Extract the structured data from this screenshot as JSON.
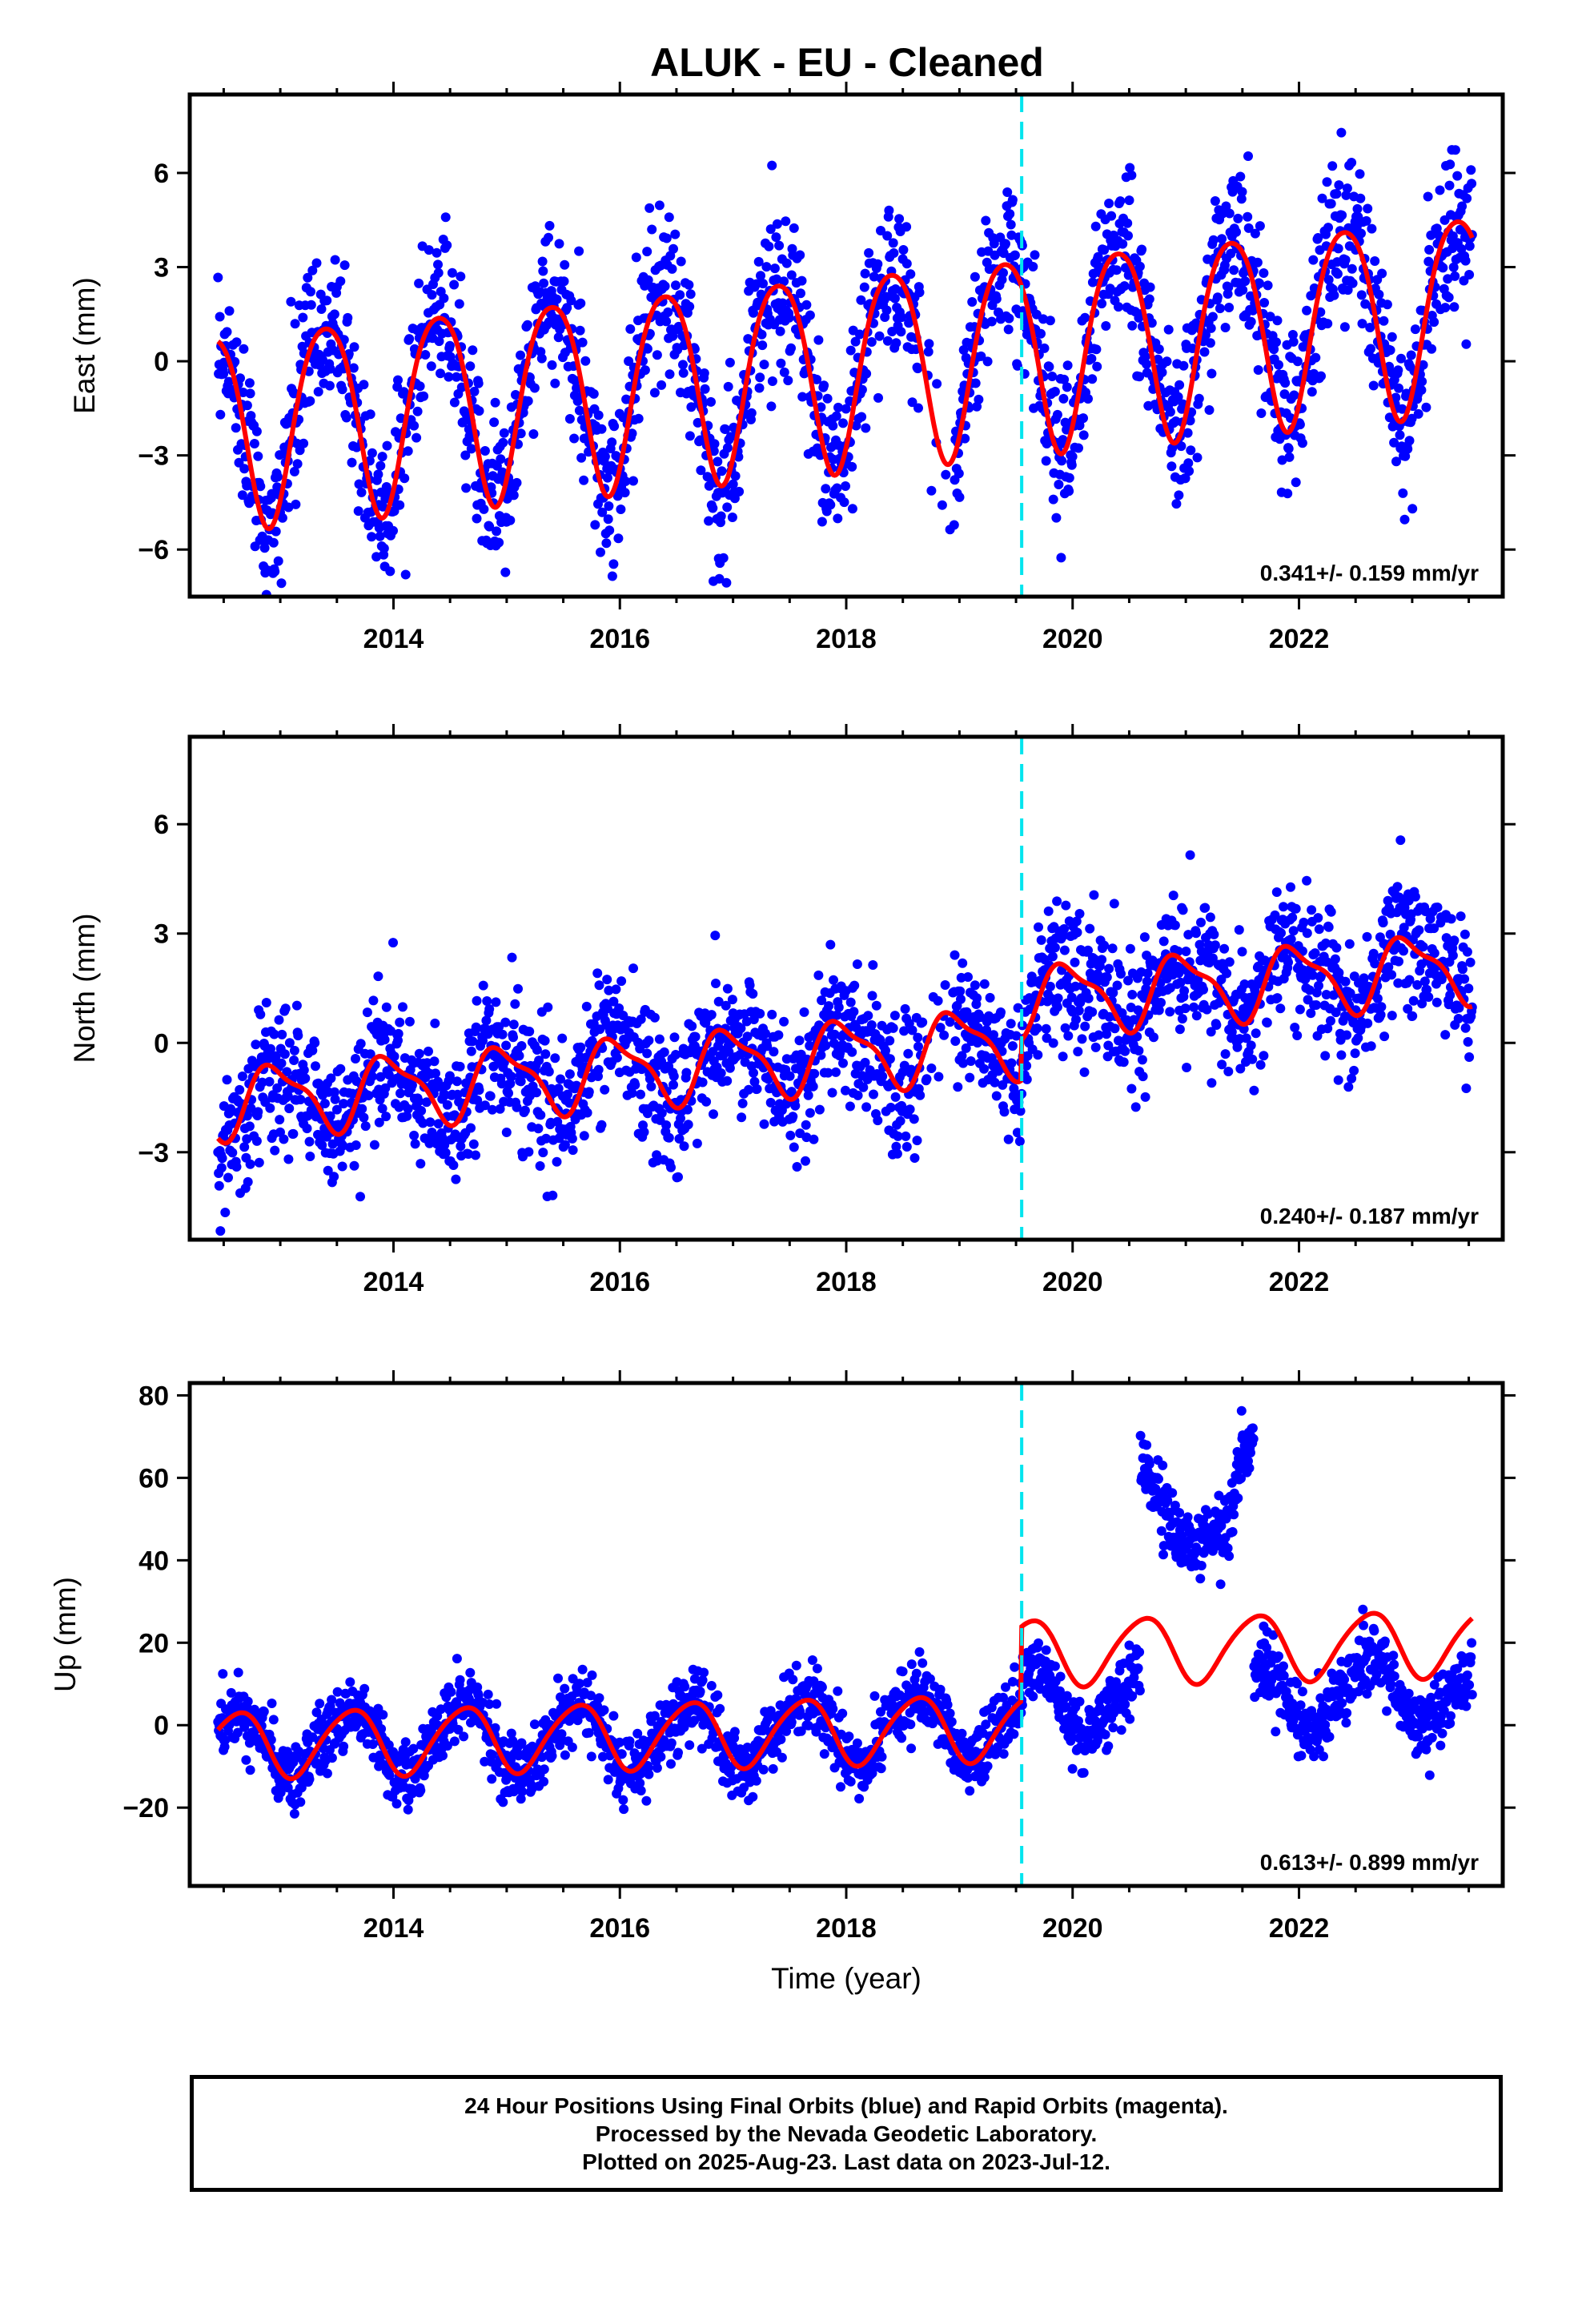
{
  "title": "ALUK  - EU - Cleaned",
  "footer": {
    "line1": "24 Hour Positions Using Final Orbits (blue) and Rapid Orbits (magenta).",
    "line2": "Processed by the Nevada Geodetic Laboratory.",
    "line3": "Plotted on 2025-Aug-23. Last data on 2023-Jul-12."
  },
  "colors": {
    "points": "#0000ff",
    "model": "#ff0000",
    "break_line": "#00e5ee"
  },
  "chart_data": [
    {
      "type": "scatter",
      "panel": "east",
      "ylabel": "East (mm)",
      "xlabel": "",
      "xlim": [
        2012.2,
        2023.8
      ],
      "ylim": [
        -7.5,
        8.5
      ],
      "xticks": [
        2014,
        2016,
        2018,
        2020,
        2022
      ],
      "xtick_labels": [
        "2014",
        "2016",
        "2018",
        "2020",
        "2022"
      ],
      "yticks": [
        -6,
        -3,
        0,
        3,
        6
      ],
      "ytick_labels": [
        "−6",
        "−3",
        "0",
        "3",
        "6"
      ],
      "rate": "0.341+/- 0.159 mm/yr",
      "equipment_change": 2019.55,
      "data_start": 2012.45,
      "data_end": 2023.53,
      "model": {
        "offset": -0.1,
        "trend": 0.341,
        "t0": 2018.0,
        "annual_amp": 3.1,
        "annual_peak": 0.4,
        "semiannual_amp": 0.4,
        "semiannual_peak": 0.15,
        "scatter_sd": 1.25
      },
      "series": [
        {
          "name": "Final Orbits",
          "style": "points",
          "color": "#0000ff"
        },
        {
          "name": "Model",
          "style": "line",
          "color": "#ff0000"
        }
      ]
    },
    {
      "type": "scatter",
      "panel": "north",
      "ylabel": "North (mm)",
      "xlabel": "",
      "xlim": [
        2012.2,
        2023.8
      ],
      "ylim": [
        -5.4,
        8.4
      ],
      "xticks": [
        2014,
        2016,
        2018,
        2020,
        2022
      ],
      "xtick_labels": [
        "2014",
        "2016",
        "2018",
        "2020",
        "2022"
      ],
      "yticks": [
        -3,
        0,
        3,
        6
      ],
      "ytick_labels": [
        "−3",
        "0",
        "3",
        "6"
      ],
      "rate": "0.240+/- 0.187 mm/yr",
      "equipment_change": 2019.55,
      "data_start": 2012.45,
      "data_end": 2023.53,
      "model": {
        "offset": -0.3,
        "trend": 0.24,
        "t0": 2018.0,
        "annual_amp": 0.9,
        "annual_peak": 0.97,
        "semiannual_amp": 0.3,
        "semiannual_peak": 0.3,
        "scatter_sd": 0.95,
        "step": 1.1
      },
      "series": [
        {
          "name": "Final Orbits",
          "style": "points",
          "color": "#0000ff"
        },
        {
          "name": "Model",
          "style": "line",
          "color": "#ff0000"
        }
      ]
    },
    {
      "type": "scatter",
      "panel": "up",
      "ylabel": "Up (mm)",
      "xlabel": "Time (year)",
      "xlim": [
        2012.2,
        2023.8
      ],
      "ylim": [
        -39,
        83
      ],
      "xticks": [
        2014,
        2016,
        2018,
        2020,
        2022
      ],
      "xtick_labels": [
        "2014",
        "2016",
        "2018",
        "2020",
        "2022"
      ],
      "yticks": [
        -20,
        0,
        20,
        40,
        60,
        80
      ],
      "ytick_labels": [
        "−20",
        "0",
        "20",
        "40",
        "60",
        "80"
      ],
      "rate": "0.613+/- 0.899 mm/yr",
      "equipment_change": 2019.55,
      "data_start": 2012.45,
      "data_end": 2023.53,
      "model": {
        "offset": -2.5,
        "trend": 0.613,
        "t0": 2016.0,
        "annual_amp": 8.0,
        "annual_peak": 0.62,
        "semiannual_amp": 1.0,
        "semiannual_peak": 0.3,
        "scatter_sd": 4.2,
        "step": 18.0
      },
      "outlier_cluster": {
        "x_range": [
          2020.6,
          2021.6
        ],
        "y_range": [
          38,
          80
        ]
      },
      "series": [
        {
          "name": "Final Orbits",
          "style": "points",
          "color": "#0000ff"
        },
        {
          "name": "Model",
          "style": "line",
          "color": "#ff0000"
        }
      ]
    }
  ]
}
